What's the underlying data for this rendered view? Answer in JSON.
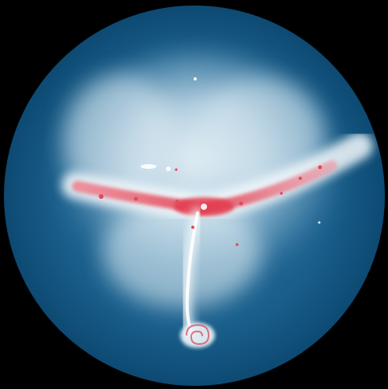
{
  "image": {
    "description_hidden": "",
    "colors": {
      "background": "#000000",
      "disk_edge": "#0d4a73",
      "disk_mid": "#1f6290",
      "glow_light": "#e8f2f7",
      "glow_mid": "#b7d3e3",
      "dense_red": "#e0485a",
      "dense_pink": "#f4a7b0",
      "core_white": "#ffffff"
    }
  }
}
